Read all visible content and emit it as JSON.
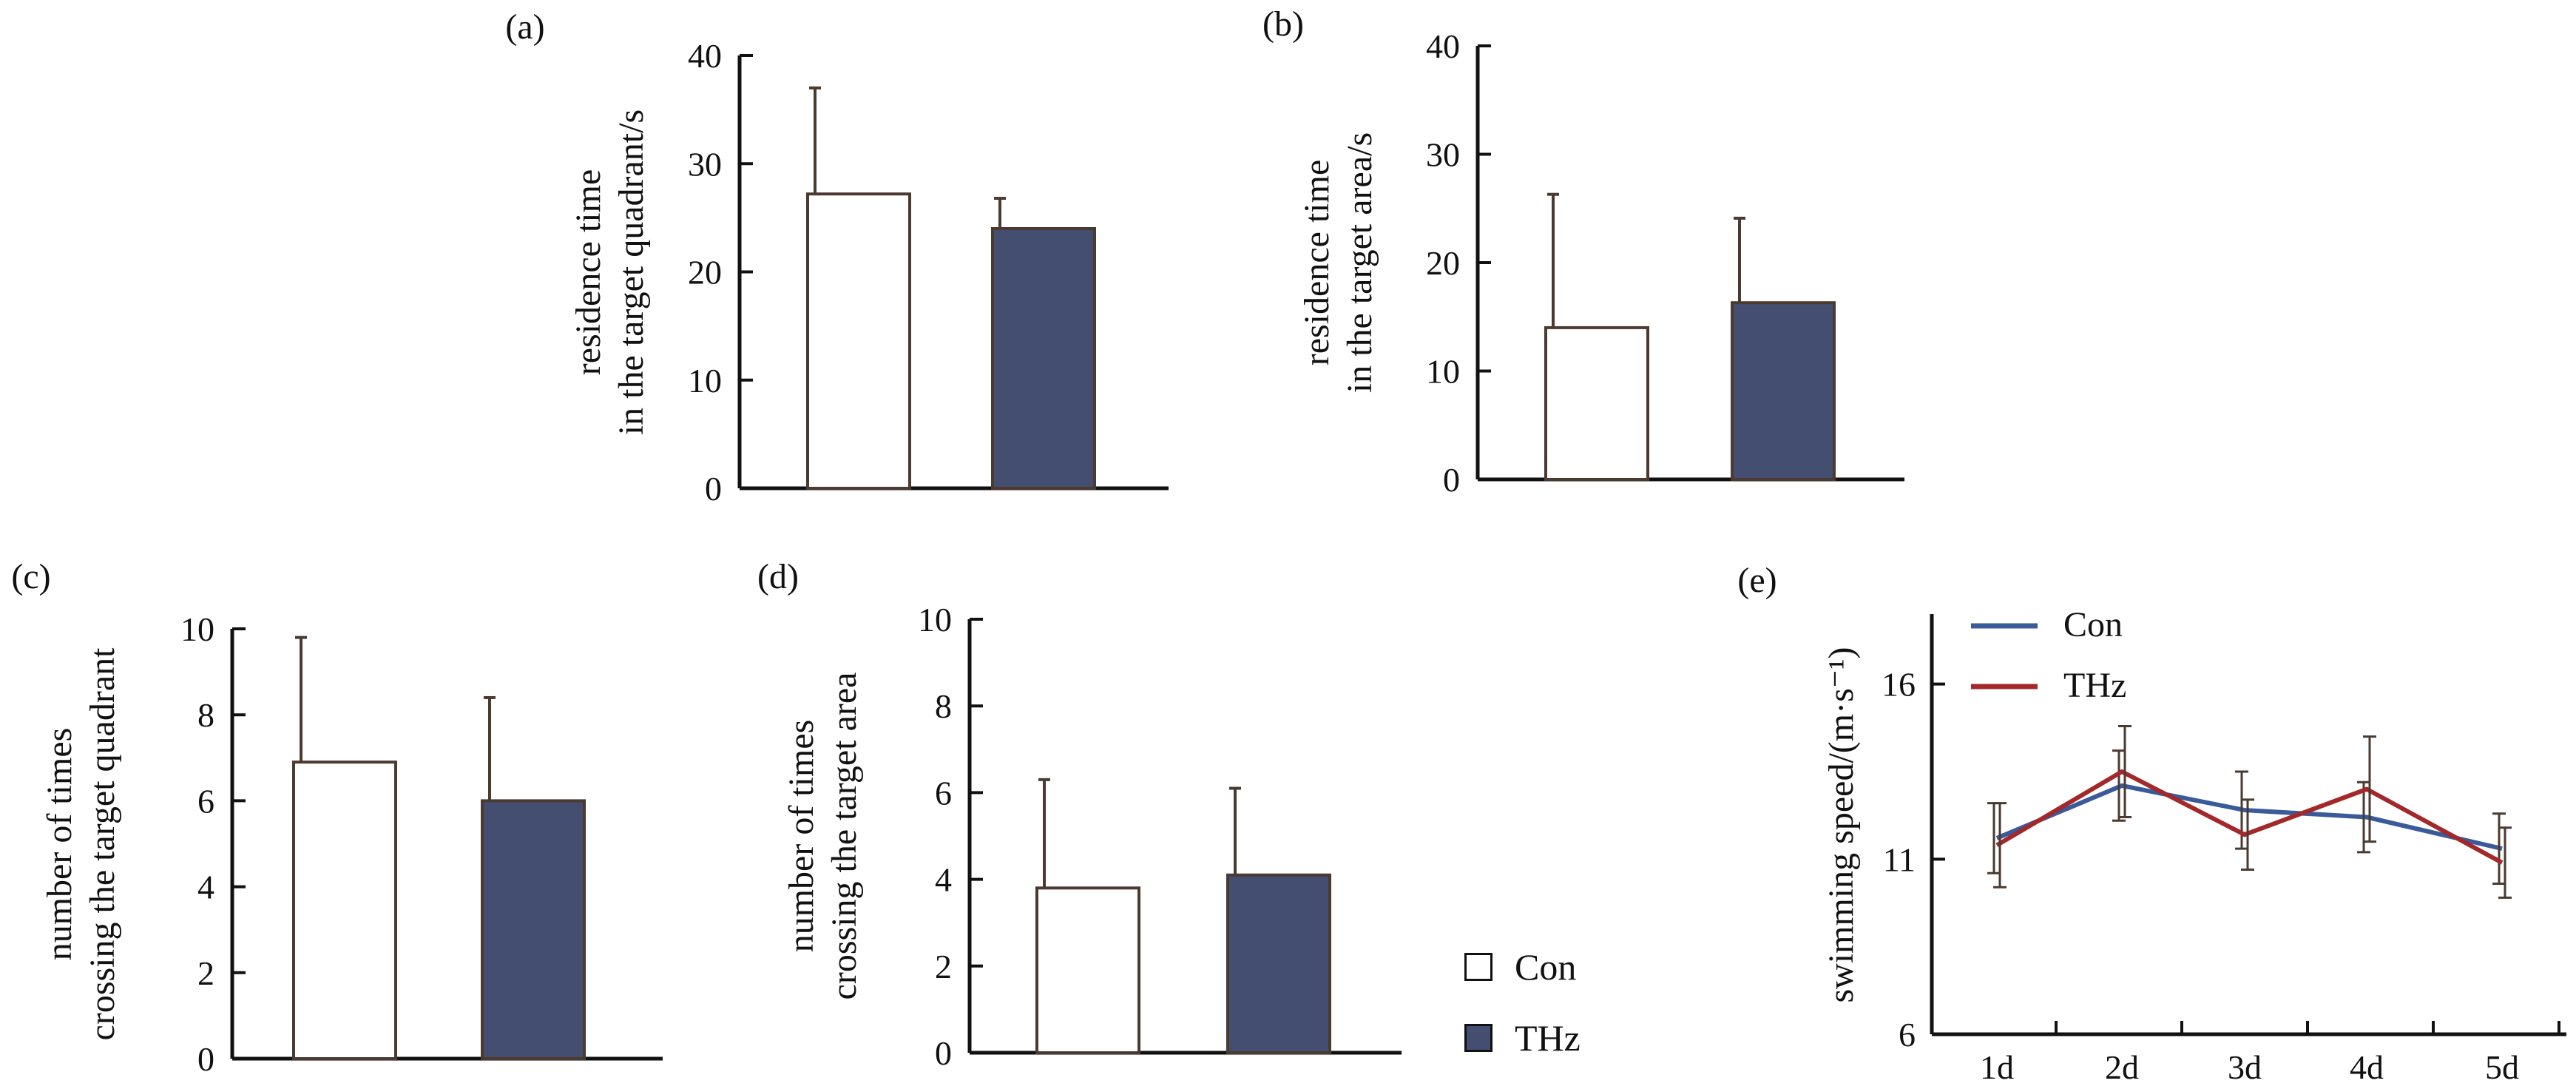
{
  "colors": {
    "con_fill": "#ffffff",
    "thz_fill": "#434e70",
    "axis": "#111111",
    "line_con": "#3a5a9a",
    "line_thz": "#a3282a",
    "errorbar": "#4a3a30"
  },
  "legend": {
    "items": [
      {
        "label": "Con",
        "fill": "#ffffff"
      },
      {
        "label": "THz",
        "fill": "#434e70"
      }
    ]
  },
  "chart_data": [
    {
      "panel": "(a)",
      "type": "bar",
      "categories": [
        "Con",
        "THz"
      ],
      "values": [
        27.2,
        24.0
      ],
      "errors": [
        9.8,
        2.8
      ],
      "ylabel": [
        "residence time",
        "in the target quadrant/s"
      ],
      "ylim": [
        0,
        40
      ],
      "yticks": [
        "0",
        "10",
        "20",
        "30",
        "40"
      ]
    },
    {
      "panel": "(b)",
      "type": "bar",
      "categories": [
        "Con",
        "THz"
      ],
      "values": [
        14.0,
        16.3
      ],
      "errors": [
        12.3,
        7.8
      ],
      "ylabel": [
        "residence time",
        "in the target area/s"
      ],
      "ylim": [
        0,
        40
      ],
      "yticks": [
        "0",
        "10",
        "20",
        "30",
        "40"
      ]
    },
    {
      "panel": "(c)",
      "type": "bar",
      "categories": [
        "Con",
        "THz"
      ],
      "values": [
        6.9,
        6.0
      ],
      "errors": [
        2.9,
        2.4
      ],
      "ylabel": [
        "number of times",
        "crossing the target quadrant"
      ],
      "ylim": [
        0,
        10
      ],
      "yticks": [
        "0",
        "2",
        "4",
        "6",
        "8",
        "10"
      ]
    },
    {
      "panel": "(d)",
      "type": "bar",
      "categories": [
        "Con",
        "THz"
      ],
      "values": [
        3.8,
        4.1
      ],
      "errors": [
        2.5,
        2.0
      ],
      "ylabel": [
        "number of times",
        "crossing the target area"
      ],
      "ylim": [
        0,
        10
      ],
      "yticks": [
        "0",
        "2",
        "4",
        "6",
        "8",
        "10"
      ]
    },
    {
      "panel": "(e)",
      "type": "line",
      "x": [
        "1d",
        "2d",
        "3d",
        "4d",
        "5d"
      ],
      "series": [
        {
          "name": "Con",
          "values": [
            11.6,
            13.1,
            12.4,
            12.2,
            11.3
          ],
          "errors": [
            1.0,
            1.0,
            1.1,
            1.0,
            1.0
          ]
        },
        {
          "name": "THz",
          "values": [
            11.4,
            13.5,
            11.7,
            13.0,
            10.9
          ],
          "errors": [
            1.2,
            1.3,
            1.0,
            1.5,
            1.0
          ]
        }
      ],
      "ylabel": "swimming speed/(m·s⁻¹)",
      "ylim": [
        6,
        18
      ],
      "yticks": [
        "6",
        "11",
        "16"
      ]
    }
  ]
}
